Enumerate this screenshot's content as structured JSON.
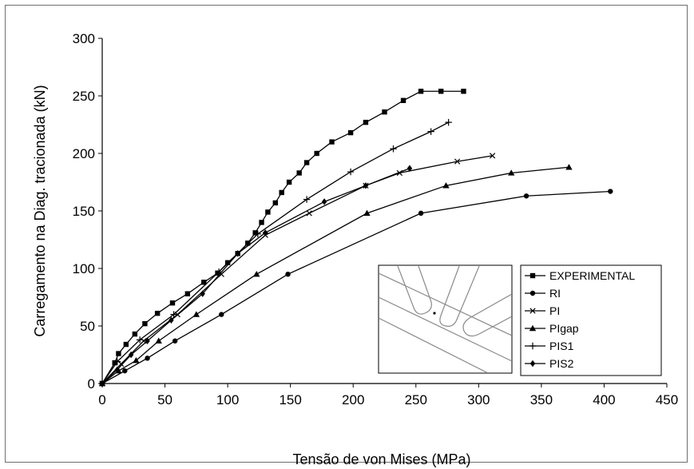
{
  "chart_data": {
    "type": "line",
    "title": "",
    "xlabel": "Tensão de von Mises (MPa)",
    "ylabel": "Carregamento na Diag. tracionada (kN)",
    "xlim": [
      0,
      450
    ],
    "ylim": [
      0,
      300
    ],
    "xticks": [
      "0",
      "50",
      "100",
      "150",
      "200",
      "250",
      "300",
      "350",
      "400",
      "450"
    ],
    "yticks": [
      "0",
      "50",
      "100",
      "150",
      "200",
      "250",
      "300"
    ],
    "grid": false,
    "legend_position": "bottom-right inside plot",
    "series": [
      {
        "name": "EXPERIMENTAL",
        "marker": "square",
        "color": "#000000",
        "x": [
          0,
          10,
          13,
          19,
          26,
          34,
          44,
          56,
          68,
          81,
          92,
          100,
          108,
          116,
          122,
          127,
          132,
          138,
          143,
          149,
          157,
          163,
          171,
          183,
          198,
          210,
          225,
          240,
          254,
          270,
          288
        ],
        "y": [
          0,
          18,
          26,
          34,
          43,
          52,
          61,
          70,
          78,
          88,
          96,
          105,
          113,
          122,
          131,
          140,
          149,
          157,
          166,
          175,
          183,
          192,
          200,
          210,
          218,
          227,
          236,
          246,
          254,
          254,
          254
        ]
      },
      {
        "name": "RI",
        "marker": "circle",
        "color": "#000000",
        "x": [
          0,
          18,
          36,
          58,
          95,
          148,
          254,
          338,
          405
        ],
        "y": [
          0,
          11,
          22,
          37,
          60,
          95,
          148,
          163,
          167
        ]
      },
      {
        "name": "PI",
        "marker": "x",
        "color": "#000000",
        "x": [
          0,
          15,
          33,
          60,
          95,
          130,
          165,
          210,
          237,
          283,
          311
        ],
        "y": [
          0,
          17,
          37,
          60,
          95,
          129,
          148,
          172,
          183,
          193,
          198
        ]
      },
      {
        "name": "PIgap",
        "marker": "triangle",
        "color": "#000000",
        "x": [
          0,
          13,
          27,
          45,
          75,
          123,
          211,
          274,
          326,
          372
        ],
        "y": [
          0,
          11,
          20,
          37,
          60,
          95,
          148,
          172,
          183,
          188
        ]
      },
      {
        "name": "PIS1",
        "marker": "plus",
        "color": "#000000",
        "x": [
          0,
          12,
          30,
          57,
          93,
          124,
          163,
          198,
          232,
          262,
          276
        ],
        "y": [
          0,
          19,
          38,
          60,
          97,
          130,
          160,
          184,
          204,
          219,
          227
        ]
      },
      {
        "name": "PIS2",
        "marker": "diamond",
        "color": "#000000",
        "x": [
          0,
          12,
          23,
          36,
          55,
          80,
          108,
          130,
          177,
          210,
          245
        ],
        "y": [
          0,
          12,
          25,
          37,
          55,
          78,
          113,
          131,
          158,
          172,
          187
        ]
      }
    ]
  }
}
